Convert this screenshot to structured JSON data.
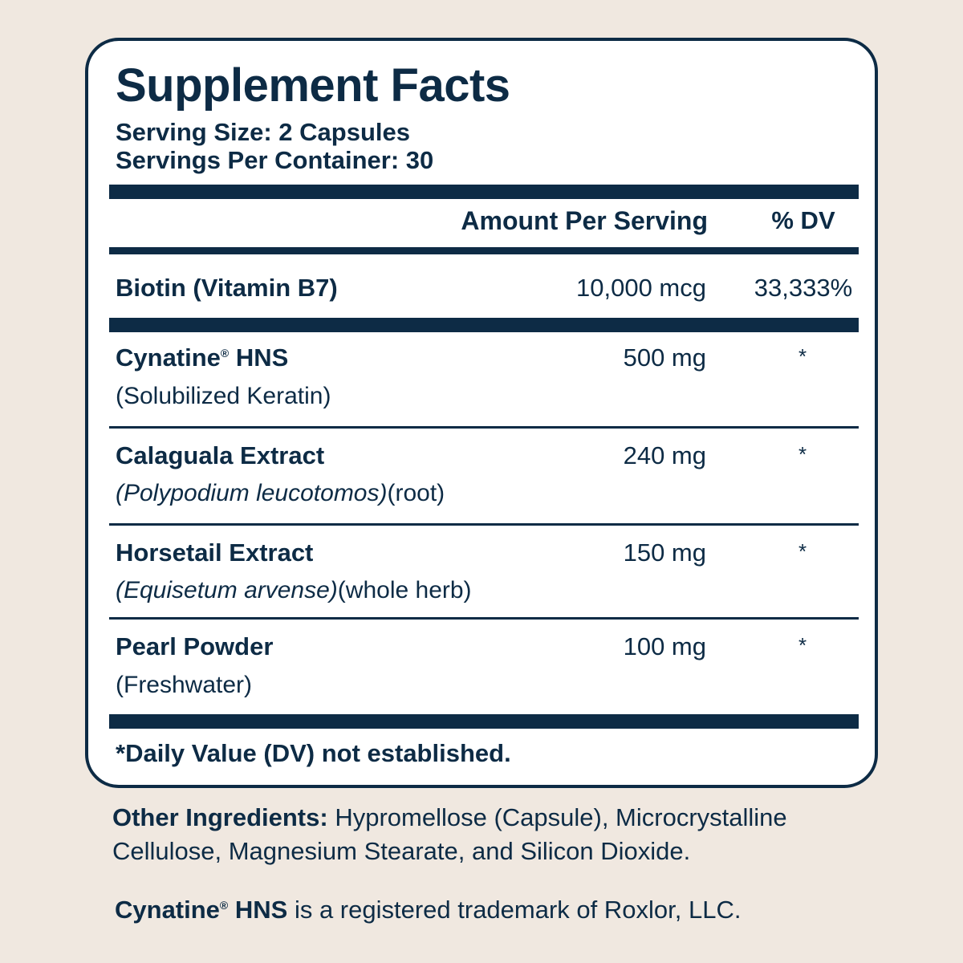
{
  "panel": {
    "title": "Supplement Facts",
    "serving_size": "Serving Size: 2 Capsules",
    "servings_per_container": "Servings Per Container: 30",
    "header_amount": "Amount Per Serving",
    "header_dv": "% DV",
    "biotin": {
      "name": "Biotin (Vitamin B7)",
      "amount": "10,000 mcg",
      "dv": "33,333%"
    },
    "cynatine": {
      "name": "Cynatine",
      "name_suffix": " HNS",
      "reg": "®",
      "sub": "(Solubilized Keratin)",
      "amount": "500 mg",
      "dv": "*"
    },
    "calaguala": {
      "name": "Calaguala Extract",
      "sub_italic": "(Polypodium leucotomos)",
      "sub_rest": "(root)",
      "amount": "240 mg",
      "dv": "*"
    },
    "horsetail": {
      "name": "Horsetail Extract",
      "sub_italic": "(Equisetum arvense)",
      "sub_rest": "(whole herb)",
      "amount": "150 mg",
      "dv": "*"
    },
    "pearl": {
      "name": "Pearl Powder",
      "sub": "(Freshwater)",
      "amount": "100 mg",
      "dv": "*"
    },
    "footnote": "*Daily Value (DV) not established."
  },
  "other_ingredients": {
    "label": "Other Ingredients:",
    "text": " Hypromellose (Capsule), Microcrystalline Cellulose, Magnesium Stearate, and Silicon Dioxide."
  },
  "trademark": {
    "brand": "Cynatine",
    "reg": "®",
    "brand_suffix": " HNS",
    "text": " is a registered trademark of Roxlor, LLC."
  },
  "colors": {
    "background": "#f0e8e0",
    "ink": "#0d2b45",
    "panel": "#ffffff"
  }
}
